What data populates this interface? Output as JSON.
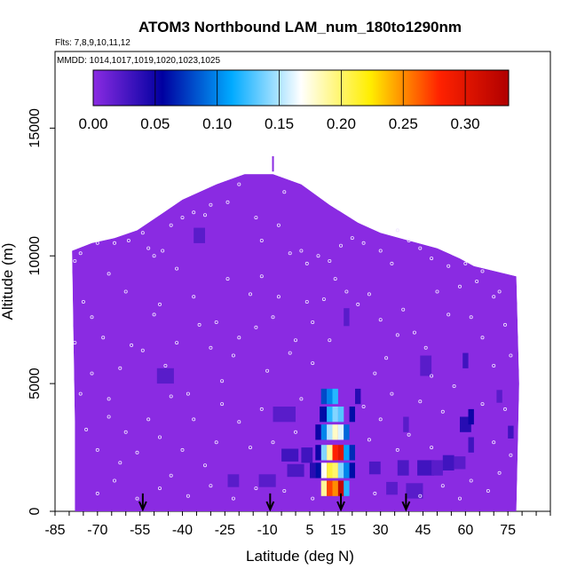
{
  "chart_data": {
    "type": "heatmap",
    "title": "ATOM3 Northbound LAM_num_180to1290nm",
    "subtitle_flights": "Flts: 7,8,9,10,11,12",
    "subtitle_dates": "MMDD: 1014,1017,1019,1020,1023,1025",
    "xlabel": "Latitude (deg N)",
    "ylabel": "Altitude (m)",
    "xlim": [
      -85,
      90
    ],
    "ylim": [
      0,
      18000
    ],
    "x_ticks": [
      -85,
      -70,
      -55,
      -40,
      -25,
      -10,
      5,
      15,
      30,
      45,
      60,
      75
    ],
    "y_ticks": [
      0,
      5000,
      10000,
      15000
    ],
    "colorbar": {
      "range": [
        0,
        0.335
      ],
      "ticks": [
        0.0,
        0.05,
        0.1,
        0.15,
        0.2,
        0.25,
        0.3
      ],
      "tick_labels": [
        "0.00",
        "0.05",
        "0.10",
        "0.15",
        "0.20",
        "0.25",
        "0.30"
      ],
      "colors": [
        "#8a2be2",
        "#0000a0",
        "#00aaff",
        "#ffffff",
        "#ffee00",
        "#ff2200",
        "#b00000"
      ]
    },
    "envelope": [
      [
        -78,
        0
      ],
      [
        -78,
        3500
      ],
      [
        -79,
        10200
      ],
      [
        -72,
        10500
      ],
      [
        -64,
        10700
      ],
      [
        -56,
        11000
      ],
      [
        -48,
        11600
      ],
      [
        -40,
        12200
      ],
      [
        -28,
        12800
      ],
      [
        -18,
        13200
      ],
      [
        -8,
        13200
      ],
      [
        2,
        12800
      ],
      [
        12,
        12000
      ],
      [
        22,
        11300
      ],
      [
        30,
        10900
      ],
      [
        40,
        10600
      ],
      [
        50,
        10300
      ],
      [
        58,
        9900
      ],
      [
        63,
        9600
      ],
      [
        78,
        9200
      ],
      [
        79,
        5000
      ],
      [
        78,
        0
      ]
    ],
    "background_value": 0.0,
    "anomalies": [
      {
        "lat": 10,
        "alt": 4500,
        "w": 2,
        "h": 600,
        "v": 0.08
      },
      {
        "lat": 10,
        "alt": 3800,
        "w": 3,
        "h": 600,
        "v": 0.06
      },
      {
        "lat": 10,
        "alt": 3100,
        "w": 2,
        "h": 600,
        "v": 0.1
      },
      {
        "lat": 10,
        "alt": 2300,
        "w": 2,
        "h": 600,
        "v": 0.14
      },
      {
        "lat": 10,
        "alt": 1600,
        "w": 2,
        "h": 600,
        "v": 0.17
      },
      {
        "lat": 10,
        "alt": 900,
        "w": 2,
        "h": 600,
        "v": 0.19
      },
      {
        "lat": 12,
        "alt": 4500,
        "w": 2,
        "h": 600,
        "v": 0.1
      },
      {
        "lat": 12,
        "alt": 3800,
        "w": 2,
        "h": 600,
        "v": 0.12
      },
      {
        "lat": 12,
        "alt": 3100,
        "w": 2,
        "h": 600,
        "v": 0.15
      },
      {
        "lat": 12,
        "alt": 2300,
        "w": 2,
        "h": 600,
        "v": 0.19
      },
      {
        "lat": 12,
        "alt": 1600,
        "w": 2,
        "h": 600,
        "v": 0.21
      },
      {
        "lat": 12,
        "alt": 900,
        "w": 2,
        "h": 600,
        "v": 0.27
      },
      {
        "lat": 14,
        "alt": 4500,
        "w": 2,
        "h": 600,
        "v": 0.12
      },
      {
        "lat": 14,
        "alt": 3800,
        "w": 2,
        "h": 600,
        "v": 0.14
      },
      {
        "lat": 14,
        "alt": 3100,
        "w": 2,
        "h": 600,
        "v": 0.18
      },
      {
        "lat": 14,
        "alt": 2300,
        "w": 2,
        "h": 600,
        "v": 0.28
      },
      {
        "lat": 14,
        "alt": 1600,
        "w": 2,
        "h": 600,
        "v": 0.2
      },
      {
        "lat": 14,
        "alt": 900,
        "w": 2,
        "h": 600,
        "v": 0.25
      },
      {
        "lat": 16,
        "alt": 3800,
        "w": 2,
        "h": 600,
        "v": 0.13
      },
      {
        "lat": 16,
        "alt": 3100,
        "w": 2,
        "h": 600,
        "v": 0.16
      },
      {
        "lat": 16,
        "alt": 2300,
        "w": 2,
        "h": 600,
        "v": 0.3
      },
      {
        "lat": 16,
        "alt": 1600,
        "w": 2,
        "h": 600,
        "v": 0.14
      },
      {
        "lat": 16,
        "alt": 900,
        "w": 2,
        "h": 600,
        "v": 0.32
      },
      {
        "lat": 18,
        "alt": 3100,
        "w": 2,
        "h": 600,
        "v": 0.09
      },
      {
        "lat": 18,
        "alt": 2300,
        "w": 2,
        "h": 600,
        "v": 0.11
      },
      {
        "lat": 18,
        "alt": 1600,
        "w": 2,
        "h": 600,
        "v": 0.1
      },
      {
        "lat": 18,
        "alt": 900,
        "w": 2,
        "h": 600,
        "v": 0.12
      },
      {
        "lat": 20,
        "alt": 3800,
        "w": 2,
        "h": 600,
        "v": 0.06
      },
      {
        "lat": 20,
        "alt": 2300,
        "w": 2,
        "h": 600,
        "v": 0.07
      },
      {
        "lat": 20,
        "alt": 1600,
        "w": 2,
        "h": 600,
        "v": 0.06
      },
      {
        "lat": 8,
        "alt": 3100,
        "w": 2,
        "h": 600,
        "v": 0.05
      },
      {
        "lat": 8,
        "alt": 2300,
        "w": 2,
        "h": 600,
        "v": 0.05
      },
      {
        "lat": 8,
        "alt": 1600,
        "w": 2,
        "h": 600,
        "v": 0.06
      },
      {
        "lat": 6,
        "alt": 1600,
        "w": 2,
        "h": 600,
        "v": 0.04
      },
      {
        "lat": 4,
        "alt": 2200,
        "w": 4,
        "h": 600,
        "v": 0.03
      },
      {
        "lat": 0,
        "alt": 1600,
        "w": 6,
        "h": 500,
        "v": 0.025
      },
      {
        "lat": -4,
        "alt": 3800,
        "w": 8,
        "h": 600,
        "v": 0.02
      },
      {
        "lat": -2,
        "alt": 2200,
        "w": 6,
        "h": 500,
        "v": 0.03
      },
      {
        "lat": -10,
        "alt": 1200,
        "w": 6,
        "h": 500,
        "v": 0.02
      },
      {
        "lat": 22,
        "alt": 4500,
        "w": 2,
        "h": 600,
        "v": 0.04
      },
      {
        "lat": 18,
        "alt": 7600,
        "w": 2,
        "h": 700,
        "v": 0.02
      },
      {
        "lat": -46,
        "alt": 5300,
        "w": 6,
        "h": 600,
        "v": 0.02
      },
      {
        "lat": -34,
        "alt": 10800,
        "w": 4,
        "h": 600,
        "v": 0.02
      },
      {
        "lat": 46,
        "alt": 5700,
        "w": 4,
        "h": 800,
        "v": 0.02
      },
      {
        "lat": 39,
        "alt": 3400,
        "w": 2,
        "h": 600,
        "v": 0.02
      },
      {
        "lat": 38,
        "alt": 1700,
        "w": 4,
        "h": 600,
        "v": 0.025
      },
      {
        "lat": 42,
        "alt": 800,
        "w": 6,
        "h": 600,
        "v": 0.02
      },
      {
        "lat": 46,
        "alt": 1700,
        "w": 6,
        "h": 600,
        "v": 0.03
      },
      {
        "lat": 50,
        "alt": 1700,
        "w": 4,
        "h": 600,
        "v": 0.02
      },
      {
        "lat": 54,
        "alt": 1900,
        "w": 4,
        "h": 600,
        "v": 0.03
      },
      {
        "lat": 60,
        "alt": 3400,
        "w": 4,
        "h": 600,
        "v": 0.04
      },
      {
        "lat": 62,
        "alt": 3700,
        "w": 2,
        "h": 600,
        "v": 0.05
      },
      {
        "lat": 62,
        "alt": 2600,
        "w": 2,
        "h": 600,
        "v": 0.03
      },
      {
        "lat": 76,
        "alt": 3100,
        "w": 2,
        "h": 500,
        "v": 0.03
      },
      {
        "lat": 60,
        "alt": 5900,
        "w": 2,
        "h": 600,
        "v": 0.03
      },
      {
        "lat": 72,
        "alt": 4500,
        "w": 2,
        "h": 500,
        "v": 0.02
      },
      {
        "lat": 58,
        "alt": 1900,
        "w": 4,
        "h": 500,
        "v": 0.02
      },
      {
        "lat": -22,
        "alt": 1200,
        "w": 4,
        "h": 500,
        "v": 0.02
      },
      {
        "lat": 28,
        "alt": 1700,
        "w": 4,
        "h": 500,
        "v": 0.025
      },
      {
        "lat": 34,
        "alt": 900,
        "w": 4,
        "h": 500,
        "v": 0.02
      }
    ],
    "sample_points": [
      [
        -76,
        10100
      ],
      [
        -70,
        10500
      ],
      [
        -64,
        10500
      ],
      [
        -59,
        10600
      ],
      [
        -54,
        10900
      ],
      [
        -52,
        10300
      ],
      [
        -50,
        10000
      ],
      [
        -47,
        10200
      ],
      [
        -44,
        11200
      ],
      [
        -40,
        11500
      ],
      [
        -36,
        11700
      ],
      [
        -32,
        11600
      ],
      [
        -30,
        12000
      ],
      [
        -24,
        12100
      ],
      [
        -20,
        12800
      ],
      [
        -14,
        11500
      ],
      [
        -12,
        10600
      ],
      [
        -6,
        11200
      ],
      [
        -2,
        10100
      ],
      [
        2,
        10200
      ],
      [
        4,
        9700
      ],
      [
        8,
        10000
      ],
      [
        12,
        9800
      ],
      [
        16,
        10400
      ],
      [
        20,
        10700
      ],
      [
        24,
        10500
      ],
      [
        30,
        10200
      ],
      [
        34,
        9700
      ],
      [
        40,
        10600
      ],
      [
        44,
        10300
      ],
      [
        48,
        9900
      ],
      [
        54,
        9600
      ],
      [
        60,
        9700
      ],
      [
        66,
        9400
      ],
      [
        72,
        8600
      ],
      [
        -75,
        8200
      ],
      [
        -72,
        7600
      ],
      [
        -68,
        6800
      ],
      [
        -72,
        5400
      ],
      [
        -66,
        4400
      ],
      [
        -62,
        5600
      ],
      [
        -58,
        6500
      ],
      [
        -54,
        6300
      ],
      [
        -50,
        7700
      ],
      [
        -46,
        5700
      ],
      [
        -44,
        4500
      ],
      [
        -42,
        6600
      ],
      [
        -38,
        4600
      ],
      [
        -36,
        8400
      ],
      [
        -34,
        7300
      ],
      [
        -30,
        6400
      ],
      [
        -28,
        7400
      ],
      [
        -26,
        5100
      ],
      [
        -22,
        6100
      ],
      [
        -20,
        6800
      ],
      [
        -16,
        8500
      ],
      [
        -14,
        7200
      ],
      [
        -12,
        9200
      ],
      [
        -8,
        7600
      ],
      [
        -6,
        8400
      ],
      [
        -2,
        6200
      ],
      [
        0,
        6700
      ],
      [
        4,
        8200
      ],
      [
        6,
        7400
      ],
      [
        10,
        8300
      ],
      [
        12,
        6700
      ],
      [
        14,
        9100
      ],
      [
        18,
        8600
      ],
      [
        22,
        8100
      ],
      [
        26,
        8500
      ],
      [
        30,
        7500
      ],
      [
        32,
        6000
      ],
      [
        36,
        6900
      ],
      [
        38,
        7900
      ],
      [
        42,
        7000
      ],
      [
        46,
        6400
      ],
      [
        50,
        8600
      ],
      [
        54,
        7700
      ],
      [
        58,
        8800
      ],
      [
        62,
        7600
      ],
      [
        66,
        6800
      ],
      [
        70,
        8400
      ],
      [
        74,
        7300
      ],
      [
        76,
        6100
      ],
      [
        -76,
        4600
      ],
      [
        -74,
        3200
      ],
      [
        -70,
        2400
      ],
      [
        -66,
        3700
      ],
      [
        -62,
        1900
      ],
      [
        -60,
        3100
      ],
      [
        -56,
        2300
      ],
      [
        -52,
        3600
      ],
      [
        -48,
        2900
      ],
      [
        -44,
        1400
      ],
      [
        -40,
        2400
      ],
      [
        -36,
        3600
      ],
      [
        -32,
        1800
      ],
      [
        -28,
        2700
      ],
      [
        -26,
        4200
      ],
      [
        -20,
        3500
      ],
      [
        -16,
        2500
      ],
      [
        -12,
        4000
      ],
      [
        -8,
        2700
      ],
      [
        -4,
        800
      ],
      [
        0,
        3100
      ],
      [
        2,
        4400
      ],
      [
        6,
        500
      ],
      [
        24,
        4100
      ],
      [
        26,
        2800
      ],
      [
        28,
        700
      ],
      [
        30,
        3600
      ],
      [
        34,
        4600
      ],
      [
        36,
        2400
      ],
      [
        40,
        3000
      ],
      [
        44,
        4300
      ],
      [
        48,
        2500
      ],
      [
        52,
        3900
      ],
      [
        56,
        4900
      ],
      [
        62,
        1200
      ],
      [
        66,
        4200
      ],
      [
        70,
        2700
      ],
      [
        72,
        1500
      ],
      [
        74,
        4000
      ],
      [
        76,
        2200
      ],
      [
        -70,
        700
      ],
      [
        -64,
        1200
      ],
      [
        -56,
        500
      ],
      [
        -48,
        900
      ],
      [
        -38,
        600
      ],
      [
        -30,
        1000
      ],
      [
        -22,
        500
      ],
      [
        -14,
        900
      ],
      [
        44,
        600
      ],
      [
        52,
        1000
      ],
      [
        58,
        500
      ],
      [
        68,
        800
      ],
      [
        -78,
        9800
      ],
      [
        -78,
        6600
      ],
      [
        -60,
        8600
      ],
      [
        -42,
        9500
      ],
      [
        -24,
        9100
      ],
      [
        -10,
        5500
      ],
      [
        6,
        5800
      ],
      [
        28,
        5400
      ],
      [
        48,
        5300
      ],
      [
        70,
        5700
      ],
      [
        64,
        9000
      ],
      [
        36,
        11000
      ],
      [
        -4,
        12500
      ],
      [
        -48,
        8100
      ],
      [
        -66,
        9300
      ]
    ],
    "arrows_lat": [
      -54,
      -9,
      16,
      39
    ]
  }
}
